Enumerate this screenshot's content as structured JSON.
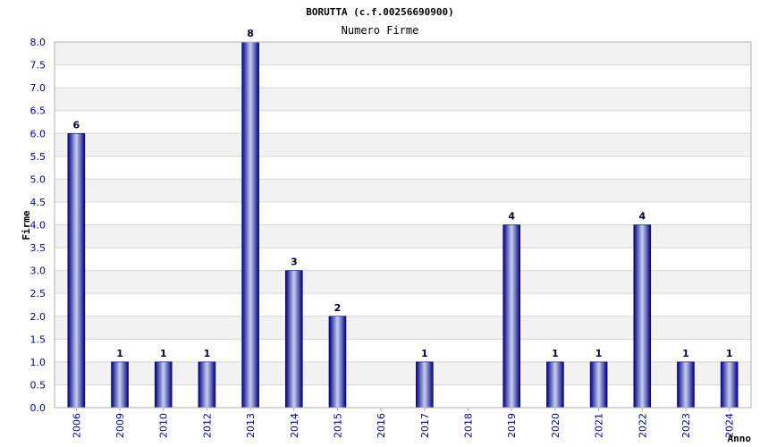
{
  "chart_data": {
    "type": "bar",
    "title": "BORUTTA (c.f.00256690900)",
    "subtitle": "Numero Firme",
    "xlabel": "Anno",
    "ylabel": "Firme",
    "categories": [
      "2006",
      "2009",
      "2010",
      "2012",
      "2013",
      "2014",
      "2015",
      "2016",
      "2017",
      "2018",
      "2019",
      "2020",
      "2021",
      "2022",
      "2023",
      "2024"
    ],
    "values": [
      6,
      1,
      1,
      1,
      8,
      3,
      2,
      0,
      1,
      0,
      4,
      1,
      1,
      4,
      1,
      1
    ],
    "data_labels": [
      "6",
      "1",
      "1",
      "1",
      "8",
      "3",
      "2",
      "",
      "1",
      "",
      "4",
      "1",
      "1",
      "4",
      "1",
      "1"
    ],
    "ylim": [
      0,
      8
    ],
    "yticks": [
      "0.0",
      "0.5",
      "1.0",
      "1.5",
      "2.0",
      "2.5",
      "3.0",
      "3.5",
      "4.0",
      "4.5",
      "5.0",
      "5.5",
      "6.0",
      "6.5",
      "7.0",
      "7.5",
      "8.0"
    ],
    "grid": true,
    "colors": {
      "bar_dark": "#000080",
      "bar_light": "#c8d0f0",
      "band_alt": "#f2f2f2",
      "grid": "#d8d8d8",
      "tick_text": "#0000aa"
    }
  }
}
